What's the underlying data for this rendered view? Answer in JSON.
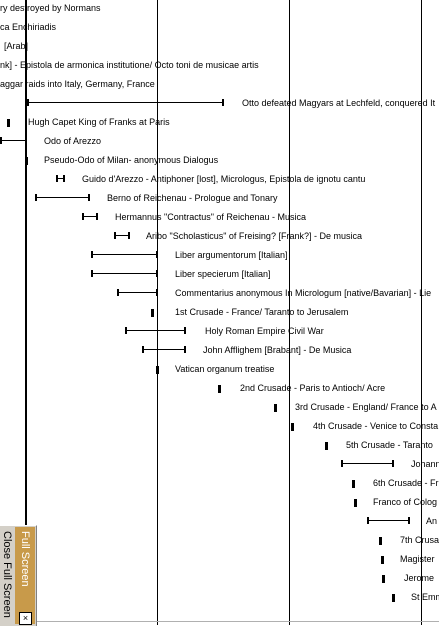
{
  "controls": {
    "full_screen_label": "Full Screen",
    "close_full_screen_label": "Close Full Screen",
    "close_glyph": "×"
  },
  "events": [
    {
      "id": "e01",
      "label": "ry destroyed by Normans",
      "mark": "none"
    },
    {
      "id": "e02",
      "label": "ca Enchiriadis",
      "mark": "none"
    },
    {
      "id": "e03",
      "label": "[Arab]",
      "mark": "none"
    },
    {
      "id": "e04",
      "label": "nk] - Epistola de armonica institutione/ Octo toni de musicae artis",
      "mark": "none"
    },
    {
      "id": "e05",
      "label": "aggar raids into Italy, Germany, France",
      "mark": "none"
    },
    {
      "id": "e06",
      "label": "Otto defeated Magyars at Lechfeld, conquered It",
      "mark": "span"
    },
    {
      "id": "e07",
      "label": "Hugh Capet King of Franks at Paris",
      "mark": "point"
    },
    {
      "id": "e08",
      "label": "Odo of Arezzo",
      "mark": "span"
    },
    {
      "id": "e09",
      "label": "Pseudo-Odo of Milan- anonymous Dialogus",
      "mark": "point"
    },
    {
      "id": "e10",
      "label": "Guido d'Arezzo - Antiphoner [lost], Micrologus, Epistola de ignotu cantu",
      "mark": "span"
    },
    {
      "id": "e11",
      "label": "Berno of Reichenau - Prologue and Tonary",
      "mark": "span"
    },
    {
      "id": "e12",
      "label": "Hermannus \"Contractus\" of Reichenau - Musica",
      "mark": "span"
    },
    {
      "id": "e13",
      "label": "Aribo \"Scholasticus\" of Freising? [Frank?] - De musica",
      "mark": "span"
    },
    {
      "id": "e14",
      "label": "Liber argumentorum [Italian]",
      "mark": "span"
    },
    {
      "id": "e15",
      "label": "Liber specierum [Italian]",
      "mark": "span"
    },
    {
      "id": "e16",
      "label": "Commentarius anonymous In Micrologum [native/Bavarian] - Lie",
      "mark": "span"
    },
    {
      "id": "e17",
      "label": "1st Crusade - France/ Taranto to Jerusalem",
      "mark": "point"
    },
    {
      "id": "e18",
      "label": "Holy Roman Empire Civil War",
      "mark": "span"
    },
    {
      "id": "e19",
      "label": "John Afflighem [Brabant] - De Musica",
      "mark": "span"
    },
    {
      "id": "e20",
      "label": "Vatican organum treatise",
      "mark": "point"
    },
    {
      "id": "e21",
      "label": "2nd Crusade - Paris to Antioch/ Acre",
      "mark": "point"
    },
    {
      "id": "e22",
      "label": "3rd Crusade - England/ France to A",
      "mark": "point"
    },
    {
      "id": "e23",
      "label": "4th Crusade - Venice to Consta",
      "mark": "point"
    },
    {
      "id": "e24",
      "label": "5th Crusade - Taranto",
      "mark": "point"
    },
    {
      "id": "e25",
      "label": "Johann",
      "mark": "span"
    },
    {
      "id": "e26",
      "label": "6th Crusade - Fr",
      "mark": "point"
    },
    {
      "id": "e27",
      "label": "Franco of Colog",
      "mark": "point"
    },
    {
      "id": "e28",
      "label": "An",
      "mark": "span"
    },
    {
      "id": "e29",
      "label": "7th Crusa",
      "mark": "point"
    },
    {
      "id": "e30",
      "label": "Magister",
      "mark": "point"
    },
    {
      "id": "e31",
      "label": "Jerome",
      "mark": "point"
    },
    {
      "id": "e32",
      "label": "St Emm",
      "mark": "point"
    }
  ]
}
